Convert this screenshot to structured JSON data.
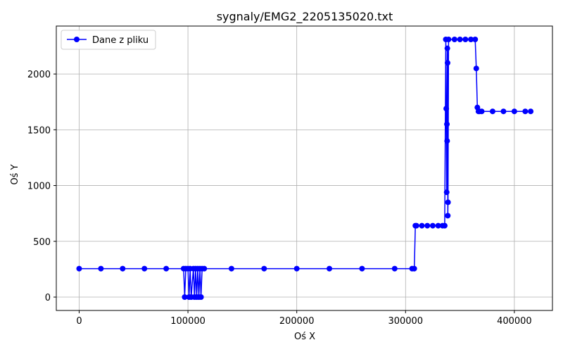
{
  "chart_data": {
    "type": "line",
    "title": "sygnaly/EMG2_2205135020.txt",
    "xlabel": "Oś X",
    "ylabel": "Oś Y",
    "xlim": [
      -21000,
      435000
    ],
    "ylim": [
      -120,
      2430
    ],
    "xticks": [
      0,
      100000,
      200000,
      300000,
      400000
    ],
    "xtick_labels": [
      "0",
      "100000",
      "200000",
      "300000",
      "400000"
    ],
    "yticks": [
      0,
      500,
      1000,
      1500,
      2000
    ],
    "ytick_labels": [
      "0",
      "500",
      "1000",
      "1500",
      "2000"
    ],
    "grid": true,
    "legend_position": "top-left",
    "series": [
      {
        "name": "Dane z pliku",
        "color": "#0000ff",
        "marker": "circle",
        "x": [
          0,
          20000,
          40000,
          60000,
          80000,
          96000,
          97000,
          98000,
          100000,
          101000,
          102000,
          103000,
          105000,
          106000,
          107000,
          108000,
          109000,
          110000,
          111000,
          112000,
          113000,
          115000,
          140000,
          170000,
          200000,
          230000,
          260000,
          290000,
          306000,
          308000,
          309000,
          310000,
          315000,
          320000,
          325000,
          330000,
          334000,
          336000,
          337000,
          337400,
          337800,
          338000,
          338200,
          338400,
          338600,
          338800,
          339000,
          339500,
          345000,
          350000,
          355000,
          360000,
          364000,
          365000,
          366000,
          367000,
          368000,
          370000,
          380000,
          390000,
          400000,
          410000,
          415000
        ],
        "y": [
          255,
          255,
          255,
          255,
          255,
          255,
          0,
          255,
          255,
          0,
          255,
          0,
          255,
          0,
          255,
          0,
          255,
          0,
          255,
          0,
          255,
          255,
          255,
          255,
          255,
          255,
          255,
          255,
          255,
          255,
          640,
          640,
          640,
          640,
          640,
          640,
          640,
          640,
          2310,
          1690,
          940,
          1550,
          1400,
          2230,
          2100,
          730,
          850,
          2310,
          2310,
          2310,
          2310,
          2310,
          2310,
          2050,
          1700,
          1665,
          1665,
          1665,
          1665,
          1665,
          1665,
          1665,
          1665
        ]
      }
    ]
  }
}
